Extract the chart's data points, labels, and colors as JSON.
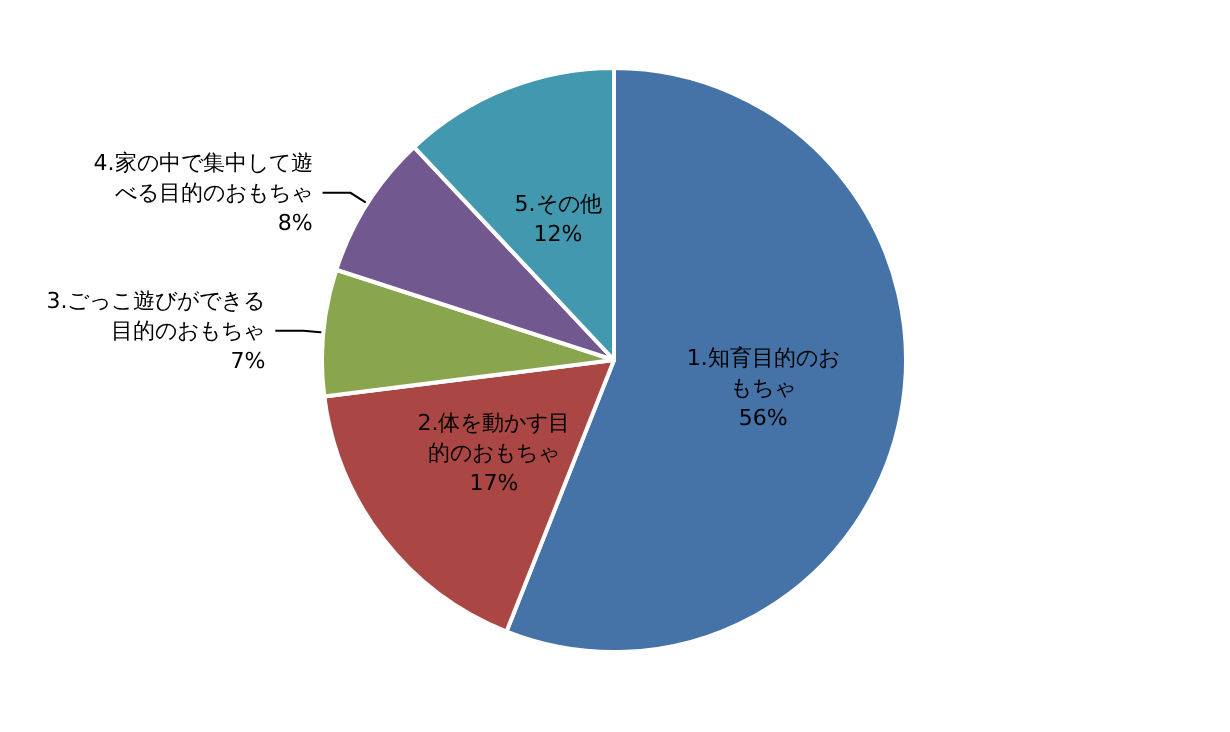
{
  "chart_data": {
    "type": "pie",
    "categories": [
      "1.知育目的のおもちゃ",
      "2.体を動かす目的のおもちゃ",
      "3.ごっこ遊びができる目的のおもちゃ",
      "4.家の中で集中して遊べる目的のおもちゃ",
      "5.その他"
    ],
    "values": [
      56,
      17,
      7,
      8,
      12
    ],
    "value_labels": [
      "56%",
      "17%",
      "7%",
      "8%",
      "12%"
    ],
    "colors": [
      "#4572a7",
      "#aa4643",
      "#89a54e",
      "#71588f",
      "#4198af"
    ],
    "legend": false
  }
}
